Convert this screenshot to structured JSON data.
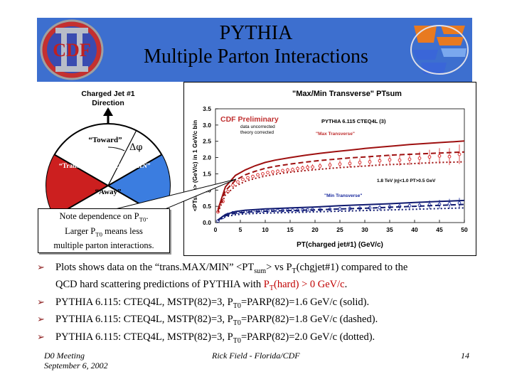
{
  "header": {
    "title_line1": "PYTHIA",
    "title_line2": "Multiple Parton Interactions",
    "logo_left_text": "CDF",
    "logo_left_numeral": "II"
  },
  "colors": {
    "header_bg": "#3d6fcf",
    "trans_max": "#cc1f1f",
    "trans_min": "#3b7de0",
    "data_red": "#d92020",
    "data_blue": "#1a2a9e",
    "curve_red": "#9e1010",
    "curve_blue": "#101a70"
  },
  "diagram": {
    "direction_line1": "Charged Jet #1",
    "direction_line2": "Direction",
    "delta_phi": "Δφ",
    "toward": "“Toward”",
    "trans_max": "“Trans.MAX”",
    "trans_min": "“Trans.MIN”",
    "away": "“Away”"
  },
  "note": {
    "line1": "Note dependence on P",
    "line1_sub": "T0",
    "line1_end": ".",
    "line2": "Larger P",
    "line2_sub": "T0",
    "line2_end": " means less",
    "line3": "multiple parton interactions."
  },
  "chart_data": {
    "type": "scatter",
    "title": "\"Max/Min Transverse\" PTsum",
    "xlabel": "PT(charged jet#1) (GeV/c)",
    "ylabel": "<PTsum> (GeV/c) in 1 GeV/c bin",
    "xlim": [
      0,
      50
    ],
    "ylim": [
      0,
      3.5
    ],
    "xticks": [
      0,
      5,
      10,
      15,
      20,
      25,
      30,
      35,
      40,
      45,
      50
    ],
    "yticks": [
      0.0,
      0.5,
      1.0,
      1.5,
      2.0,
      2.5,
      3.0,
      3.5
    ],
    "annotations": {
      "preliminary": "CDF Preliminary",
      "data_note_1": "data uncorrected",
      "data_note_2": "theory corrected",
      "pythia_label": "PYTHIA 6.115 CTEQ4L (3)",
      "max_label": "\"Max Transverse\"",
      "min_label": "\"Min Transverse\"",
      "cuts_label": "1.8 TeV |η|<1.0 PT>0.5 GeV"
    },
    "series": [
      {
        "name": "CDF data Max Transverse",
        "style": "data",
        "color": "#d92020",
        "x": [
          0.5,
          1.5,
          2.5,
          3.5,
          4.5,
          5.5,
          6.5,
          7.5,
          8.5,
          9.5,
          10.5,
          11.5,
          12.5,
          13.5,
          14.5,
          15.5,
          16.5,
          17.5,
          18.5,
          19.5,
          21,
          23,
          25,
          27,
          29,
          31,
          33,
          35,
          37,
          39,
          41,
          43,
          45,
          47,
          49
        ],
        "y": [
          0.33,
          0.65,
          0.95,
          1.15,
          1.25,
          1.33,
          1.38,
          1.42,
          1.47,
          1.5,
          1.54,
          1.56,
          1.58,
          1.6,
          1.62,
          1.63,
          1.66,
          1.68,
          1.7,
          1.71,
          1.74,
          1.77,
          1.8,
          1.82,
          1.85,
          1.87,
          1.9,
          1.93,
          1.92,
          1.95,
          1.98,
          2.02,
          2.05,
          2.03,
          2.1
        ],
        "err": [
          0.02,
          0.02,
          0.02,
          0.02,
          0.02,
          0.02,
          0.03,
          0.03,
          0.03,
          0.03,
          0.04,
          0.04,
          0.05,
          0.05,
          0.06,
          0.06,
          0.07,
          0.07,
          0.08,
          0.08,
          0.09,
          0.1,
          0.11,
          0.12,
          0.13,
          0.14,
          0.15,
          0.16,
          0.17,
          0.18,
          0.2,
          0.22,
          0.24,
          0.26,
          0.3
        ]
      },
      {
        "name": "PYTHIA Max PT0=1.6 (solid)",
        "style": "curve-solid",
        "color": "#9e1010",
        "x": [
          0.5,
          2,
          4,
          6,
          8,
          10,
          12,
          15,
          18,
          21,
          24,
          27,
          30,
          33,
          36,
          39,
          42,
          45,
          48,
          50
        ],
        "y": [
          0.4,
          1.1,
          1.45,
          1.62,
          1.75,
          1.85,
          1.92,
          2.0,
          2.07,
          2.13,
          2.18,
          2.23,
          2.28,
          2.32,
          2.36,
          2.4,
          2.43,
          2.46,
          2.49,
          2.51
        ]
      },
      {
        "name": "PYTHIA Max PT0=1.8 (dashed)",
        "style": "curve-dashed",
        "color": "#9e1010",
        "x": [
          0.5,
          2,
          4,
          6,
          8,
          10,
          12,
          15,
          18,
          21,
          24,
          27,
          30,
          33,
          36,
          39,
          42,
          45,
          48,
          50
        ],
        "y": [
          0.36,
          0.98,
          1.3,
          1.47,
          1.58,
          1.67,
          1.73,
          1.8,
          1.86,
          1.91,
          1.95,
          1.99,
          2.02,
          2.05,
          2.08,
          2.1,
          2.12,
          2.14,
          2.16,
          2.17
        ]
      },
      {
        "name": "PYTHIA Max PT0=2.0 (dotted)",
        "style": "curve-dotted",
        "color": "#9e1010",
        "x": [
          0.5,
          2,
          4,
          6,
          8,
          10,
          12,
          15,
          18,
          21,
          24,
          27,
          30,
          33,
          36,
          39,
          42,
          45,
          48,
          50
        ],
        "y": [
          0.32,
          0.85,
          1.12,
          1.27,
          1.36,
          1.43,
          1.49,
          1.55,
          1.6,
          1.64,
          1.68,
          1.71,
          1.74,
          1.77,
          1.79,
          1.81,
          1.83,
          1.85,
          1.86,
          1.87
        ]
      },
      {
        "name": "CDF data Min Transverse",
        "style": "data",
        "color": "#1a2a9e",
        "x": [
          0.5,
          1.5,
          2.5,
          3.5,
          4.5,
          5.5,
          6.5,
          7.5,
          8.5,
          9.5,
          10.5,
          11.5,
          12.5,
          13.5,
          14.5,
          15.5,
          16.5,
          17.5,
          18.5,
          19.5,
          21,
          23,
          25,
          27,
          29,
          31,
          33,
          35,
          37,
          39,
          41,
          43,
          45,
          47,
          49
        ],
        "y": [
          0.05,
          0.16,
          0.25,
          0.3,
          0.32,
          0.33,
          0.34,
          0.35,
          0.35,
          0.36,
          0.36,
          0.37,
          0.37,
          0.37,
          0.38,
          0.38,
          0.38,
          0.39,
          0.39,
          0.4,
          0.4,
          0.41,
          0.42,
          0.43,
          0.44,
          0.45,
          0.46,
          0.48,
          0.5,
          0.52,
          0.53,
          0.55,
          0.56,
          0.58,
          0.6
        ],
        "err": [
          0.01,
          0.01,
          0.01,
          0.01,
          0.01,
          0.01,
          0.02,
          0.02,
          0.02,
          0.02,
          0.02,
          0.02,
          0.03,
          0.03,
          0.03,
          0.03,
          0.04,
          0.04,
          0.04,
          0.05,
          0.05,
          0.06,
          0.06,
          0.07,
          0.07,
          0.08,
          0.08,
          0.09,
          0.1,
          0.11,
          0.12,
          0.13,
          0.14,
          0.15,
          0.16
        ]
      },
      {
        "name": "PYTHIA Min PT0=1.6 (solid)",
        "style": "curve-solid",
        "color": "#101a70",
        "x": [
          0.5,
          2,
          4,
          6,
          8,
          10,
          15,
          20,
          25,
          30,
          35,
          40,
          45,
          50
        ],
        "y": [
          0.08,
          0.25,
          0.34,
          0.38,
          0.4,
          0.42,
          0.45,
          0.48,
          0.52,
          0.55,
          0.58,
          0.62,
          0.65,
          0.68
        ]
      },
      {
        "name": "PYTHIA Min PT0=1.8 (dashed)",
        "style": "curve-dashed",
        "color": "#101a70",
        "x": [
          0.5,
          2,
          4,
          6,
          8,
          10,
          15,
          20,
          25,
          30,
          35,
          40,
          45,
          50
        ],
        "y": [
          0.07,
          0.21,
          0.29,
          0.32,
          0.34,
          0.35,
          0.37,
          0.39,
          0.42,
          0.44,
          0.47,
          0.5,
          0.53,
          0.56
        ]
      },
      {
        "name": "PYTHIA Min PT0=2.0 (dotted)",
        "style": "curve-dotted",
        "color": "#101a70",
        "x": [
          0.5,
          2,
          4,
          6,
          8,
          10,
          15,
          20,
          25,
          30,
          35,
          40,
          45,
          50
        ],
        "y": [
          0.06,
          0.18,
          0.24,
          0.27,
          0.28,
          0.29,
          0.31,
          0.33,
          0.35,
          0.37,
          0.39,
          0.41,
          0.43,
          0.45
        ]
      }
    ]
  },
  "bullets": [
    {
      "pre": "Plots shows data on the “trans.MAX/MIN” <PT",
      "sub1": "sum",
      "mid": "> vs P",
      "sub2": "T",
      "post": "(chgjet#1) compared to the",
      "line2_pre": "QCD hard scattering predictions of PYTHIA with ",
      "line2_red": "P",
      "line2_red_sub": "T",
      "line2_red_post": "(hard) > 0 GeV/c",
      "line2_end": "."
    },
    {
      "pre": "PYTHIA 6.115: CTEQ4L, MSTP(82)=3, P",
      "sub": "T0",
      "post": "=PARP(82)=1.6 GeV/c (solid)."
    },
    {
      "pre": "PYTHIA 6.115: CTEQ4L, MSTP(82)=3, P",
      "sub": "T0",
      "post": "=PARP(82)=1.8 GeV/c (dashed)."
    },
    {
      "pre": "PYTHIA 6.115: CTEQ4L, MSTP(82)=3, P",
      "sub": "T0",
      "post": "=PARP(82)=2.0 GeV/c (dotted)."
    }
  ],
  "footer": {
    "left_line1": "D0 Meeting",
    "left_line2": "September 6, 2002",
    "center": "Rick Field - Florida/CDF",
    "page": "14"
  }
}
